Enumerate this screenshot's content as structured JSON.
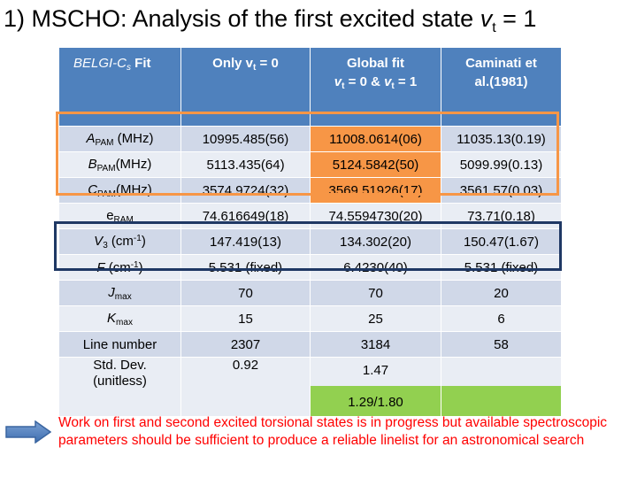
{
  "title": {
    "prefix": "1) MSCHO: Analysis of the first excited state ",
    "var": "v",
    "sub": "t",
    "suffix": " = 1"
  },
  "headers": {
    "col0_main": "BELGI-C",
    "col0_sub": "s",
    "col0_tail": " Fit",
    "col1": "Only v",
    "col1_sub": "t",
    "col1_tail": " = 0",
    "col2_line1": "Global fit",
    "col2_a": "v",
    "col2_a_sub": "t",
    "col2_mid": " = 0 & ",
    "col2_b": "v",
    "col2_b_sub": "t",
    "col2_tail": " = 1",
    "col3_line1": "Caminati et",
    "col3_line2": "al.(1981)"
  },
  "rows": [
    {
      "label": "A",
      "sub": "PAM",
      "tail": " (MHz)",
      "v": [
        "10995.485(56)",
        "11008.0614(06)",
        "11035.13(0.19)"
      ]
    },
    {
      "label": "B",
      "sub": "PAM",
      "tail": "(MHz)",
      "v": [
        "5113.435(64)",
        "5124.5842(50)",
        "5099.99(0.13)"
      ]
    },
    {
      "label": "C",
      "sub": "PAM",
      "tail": "(MHz)",
      "v": [
        "3574.9724(32)",
        "3569.51926(17)",
        "3561.57(0.03)"
      ]
    },
    {
      "label": "e",
      "sub": "RAM",
      "tail": "",
      "v": [
        "74.616649(18)",
        "74.5594730(20)",
        "73.71(0.18)"
      ]
    },
    {
      "label": "V",
      "sub": "3",
      "tail": " (cm",
      "sup": "-1",
      "close": ")",
      "v": [
        "147.419(13)",
        "134.302(20)",
        "150.47(1.67)"
      ]
    },
    {
      "label": "F",
      "tail": " (cm",
      "sup": "-1",
      "close": ")",
      "v": [
        "5.531 (fixed)",
        "6.4230(40)",
        "5.531 (fixed)"
      ]
    },
    {
      "label": "J",
      "sub": "max",
      "v": [
        "70",
        "70",
        "20"
      ]
    },
    {
      "label": "K",
      "sub": "max",
      "v": [
        "15",
        "25",
        "6"
      ]
    },
    {
      "label": "Line number",
      "v": [
        "2307",
        "3184",
        "58"
      ]
    },
    {
      "label_line1": "Std. Dev.",
      "label_line2": "(unitless)",
      "v": [
        "0.92",
        "1.47",
        ""
      ],
      "v2_extra": "1.29/1.80"
    }
  ],
  "note": "Work on first and second excited torsional states is in progress but available spectroscopic parameters should be sufficient to produce a reliable linelist for an astronomical search",
  "colors": {
    "header": "#4f81bd",
    "row_dark": "#d0d8e8",
    "row_light": "#e9edf4",
    "highlight": "#f79646",
    "green": "#92d050",
    "box": "#1f3864",
    "note": "#ff0000",
    "arrow": "#4f81bd"
  }
}
